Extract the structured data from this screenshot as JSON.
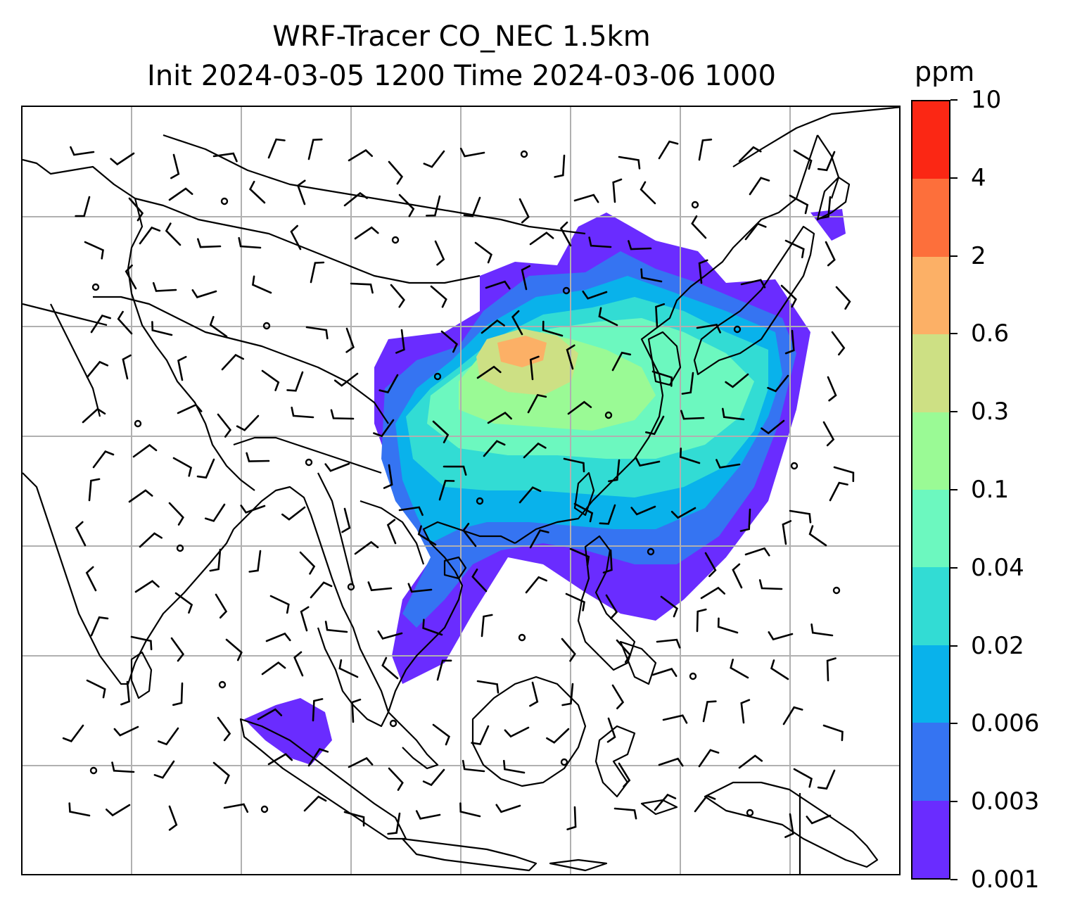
{
  "title": {
    "line1": "WRF-Tracer CO_NEC 1.5km",
    "line2": "Init 2024-03-05 1200 Time 2024-03-06 1000"
  },
  "colorbar": {
    "unit": "ppm",
    "levels": [
      "0.001",
      "0.003",
      "0.006",
      "0.02",
      "0.04",
      "0.1",
      "0.3",
      "0.6",
      "2",
      "4",
      "10"
    ],
    "colors": [
      "#6a2cff",
      "#3574f2",
      "#09b2eb",
      "#32dcd4",
      "#6cf8bf",
      "#9afa95",
      "#cde084",
      "#fcb066",
      "#fd6f3b",
      "#fb2714"
    ]
  },
  "map": {
    "gridlines": true,
    "gridline_color": "#b0b0b0",
    "coastline_color": "#000000"
  }
}
